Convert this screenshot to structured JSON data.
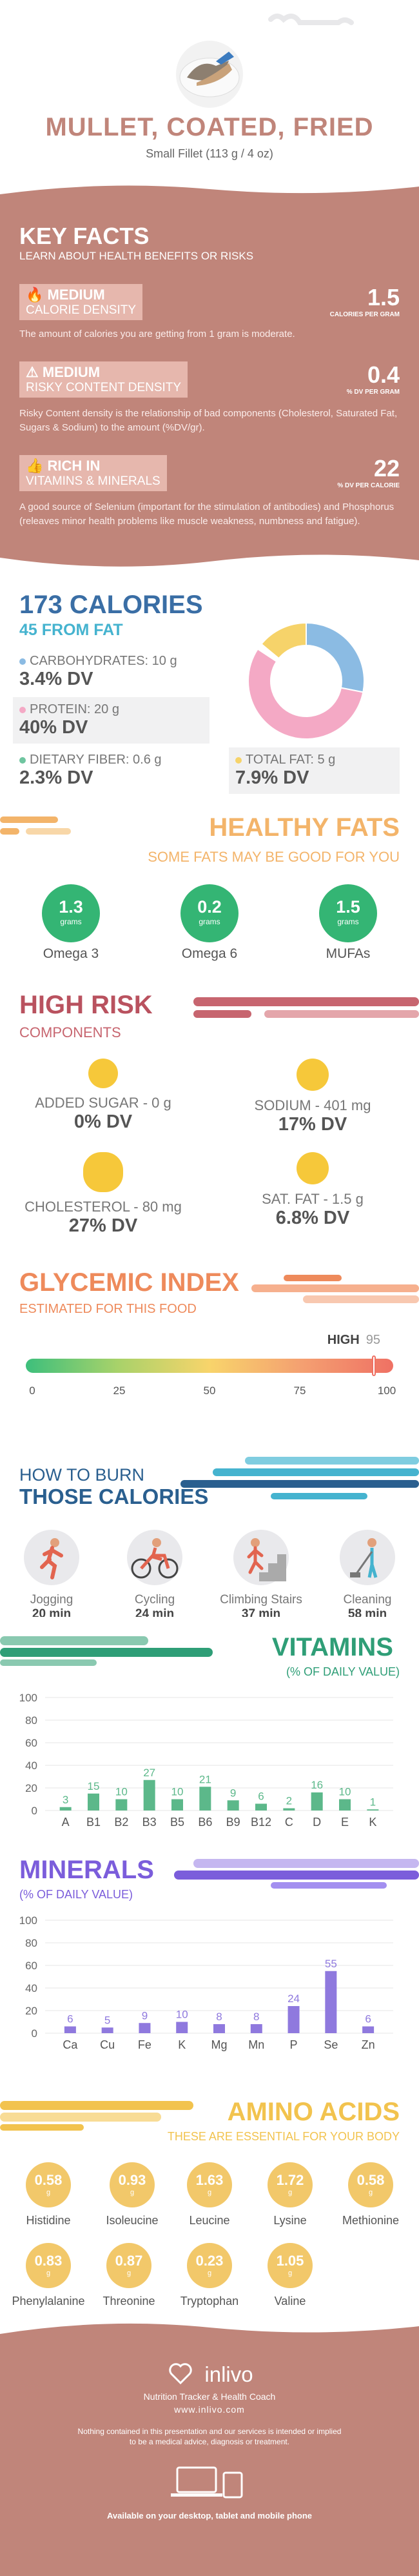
{
  "header": {
    "title": "MULLET, COATED, FRIED",
    "subtitle": "Small Fillet (113 g / 4 oz)"
  },
  "key_facts": {
    "title": "KEY FACTS",
    "subtitle": "LEARN ABOUT HEALTH BENEFITS OR RISKS",
    "items": [
      {
        "level": "MEDIUM",
        "label": "CALORIE DENSITY",
        "value": "1.5",
        "unit": "CALORIES PER GRAM",
        "desc": "The amount of calories you are getting from 1 gram is moderate."
      },
      {
        "level": "MEDIUM",
        "label": "RISKY CONTENT DENSITY",
        "value": "0.4",
        "unit": "% DV PER GRAM",
        "desc": "Risky Content density is the relationship of bad components (Cholesterol, Saturated Fat, Sugars & Sodium) to the amount (%DV/gr)."
      },
      {
        "level": "RICH IN",
        "label": "VITAMINS & MINERALS",
        "value": "22",
        "unit": "% DV PER CALORIE",
        "desc": "A good source of Selenium (important for the stimulation of antibodies) and Phosphorus (releaves minor health problems like muscle weakness, numbness and fatigue)."
      }
    ]
  },
  "calories": {
    "title": "173 CALORIES",
    "subtitle": "45 FROM FAT",
    "nutrients": [
      {
        "label": "CARBOHYDRATES: 10 g",
        "dv": "3.4% DV",
        "color": "#8bbbe3"
      },
      {
        "label": "PROTEIN: 20 g",
        "dv": "40% DV",
        "color": "#f4a9c5"
      },
      {
        "label": "DIETARY FIBER: 0.6 g",
        "dv": "2.3% DV",
        "color": "#6fc5a0"
      },
      {
        "label": "TOTAL FAT: 5 g",
        "dv": "7.9% DV",
        "color": "#f6d36a"
      }
    ],
    "donut": [
      {
        "name": "carbohydrates",
        "value": 10,
        "color": "#8bbbe3"
      },
      {
        "name": "protein",
        "value": 20,
        "color": "#f4a9c5"
      },
      {
        "name": "fiber",
        "value": 0.6,
        "color": "#ffffff"
      },
      {
        "name": "fat",
        "value": 5,
        "color": "#f6d36a"
      }
    ]
  },
  "healthy_fats": {
    "title": "HEALTHY FATS",
    "subtitle": "SOME FATS MAY BE GOOD FOR YOU",
    "items": [
      {
        "value": "1.3",
        "unit": "grams",
        "name": "Omega 3"
      },
      {
        "value": "0.2",
        "unit": "grams",
        "name": "Omega 6"
      },
      {
        "value": "1.5",
        "unit": "grams",
        "name": "MUFAs"
      }
    ]
  },
  "high_risk": {
    "title": "HIGH RISK",
    "subtitle": "COMPONENTS",
    "items": [
      {
        "label": "ADDED SUGAR - 0 g",
        "dv": "0% DV"
      },
      {
        "label": "SODIUM - 401 mg",
        "dv": "17% DV"
      },
      {
        "label": "CHOLESTEROL - 80 mg",
        "dv": "27% DV"
      },
      {
        "label": "SAT. FAT - 1.5 g",
        "dv": "6.8% DV"
      }
    ]
  },
  "glycemic": {
    "title": "GLYCEMIC INDEX",
    "subtitle": "ESTIMATED FOR THIS FOOD",
    "level": "HIGH",
    "value": "95",
    "value_num": 95,
    "ticks": [
      "0",
      "25",
      "50",
      "75",
      "100"
    ]
  },
  "burn": {
    "title1": "HOW TO BURN",
    "title2": "THOSE CALORIES",
    "activities": [
      {
        "name": "Jogging",
        "time": "20 min",
        "icon": "jogging-icon"
      },
      {
        "name": "Cycling",
        "time": "24 min",
        "icon": "cycling-icon"
      },
      {
        "name": "Climbing Stairs",
        "time": "37 min",
        "icon": "stairs-icon"
      },
      {
        "name": "Cleaning",
        "time": "58 min",
        "icon": "cleaning-icon"
      }
    ]
  },
  "vitamins": {
    "title": "VITAMINS",
    "subtitle": "(% OF DAILY VALUE)"
  },
  "minerals": {
    "title": "MINERALS",
    "subtitle": "(% OF DAILY VALUE)"
  },
  "chart_data": [
    {
      "type": "bar",
      "categories": [
        "A",
        "B1",
        "B2",
        "B3",
        "B5",
        "B6",
        "B9",
        "B12",
        "C",
        "D",
        "E",
        "K"
      ],
      "values": [
        3,
        15,
        10,
        27,
        10,
        21,
        9,
        6,
        2,
        16,
        10,
        1
      ],
      "yticks": [
        "0",
        "20",
        "40",
        "60",
        "80",
        "100"
      ],
      "ylim": [
        0,
        100
      ],
      "color": "#5cb88a"
    },
    {
      "type": "bar",
      "categories": [
        "Ca",
        "Cu",
        "Fe",
        "K",
        "Mg",
        "Mn",
        "P",
        "Se",
        "Zn"
      ],
      "values": [
        6,
        5,
        9,
        10,
        8,
        8,
        24,
        55,
        6
      ],
      "yticks": [
        "0",
        "20",
        "40",
        "60",
        "80",
        "100"
      ],
      "ylim": [
        0,
        100
      ],
      "color": "#8f79de"
    }
  ],
  "amino": {
    "title": "AMINO ACIDS",
    "subtitle": "THESE ARE ESSENTIAL FOR YOUR BODY",
    "items": [
      {
        "value": "0.58",
        "unit": "g",
        "name": "Histidine"
      },
      {
        "value": "0.93",
        "unit": "g",
        "name": "Isoleucine"
      },
      {
        "value": "1.63",
        "unit": "g",
        "name": "Leucine"
      },
      {
        "value": "1.72",
        "unit": "g",
        "name": "Lysine"
      },
      {
        "value": "0.58",
        "unit": "g",
        "name": "Methionine"
      },
      {
        "value": "0.83",
        "unit": "g",
        "name": "Phenylalanine"
      },
      {
        "value": "0.87",
        "unit": "g",
        "name": "Threonine"
      },
      {
        "value": "0.23",
        "unit": "g",
        "name": "Tryptophan"
      },
      {
        "value": "1.05",
        "unit": "g",
        "name": "Valine"
      }
    ]
  },
  "footer": {
    "brand": "inlivo",
    "tagline": "Nutrition Tracker & Health Coach",
    "url": "www.inlivo.com",
    "disclaimer1": "Nothing contained in this presentation and our services is intended or implied",
    "disclaimer2": "to be a medical advice, diagnosis or treatment.",
    "available": "Available on your desktop, tablet and mobile phone"
  }
}
